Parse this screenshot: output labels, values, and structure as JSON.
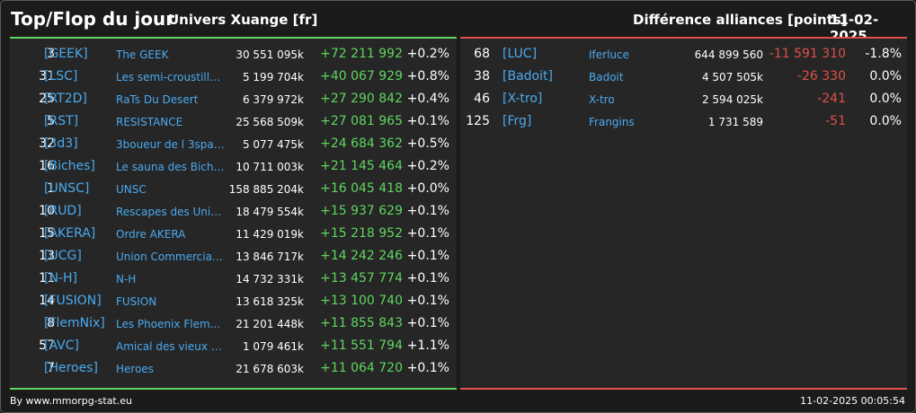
{
  "header": {
    "title": "Top/Flop du jour",
    "subtitle": "Univers Xuange [fr]",
    "right_title": "Différence alliances [points]",
    "date": "11-02-2025"
  },
  "colors": {
    "positive": "#5fd65f",
    "negative": "#e0504a",
    "link": "#4aaaf0",
    "background": "#1b1b1b",
    "panel": "#262626"
  },
  "top": [
    {
      "rank": "3",
      "tag": "[GEEK]",
      "name": "The GEEK",
      "points": "30 551 095k",
      "diff": "+72 211 992",
      "pct": "+0.2%"
    },
    {
      "rank": "31",
      "tag": "[LSC]",
      "name": "Les semi-croustilla...",
      "points": "5 199 704k",
      "diff": "+40 067 929",
      "pct": "+0.8%"
    },
    {
      "rank": "25",
      "tag": "[RT2D]",
      "name": "RaTs Du Desert",
      "points": "6 379 972k",
      "diff": "+27 290 842",
      "pct": "+0.4%"
    },
    {
      "rank": "5",
      "tag": "[RST]",
      "name": "RESISTANCE",
      "points": "25 568 509k",
      "diff": "+27 081 965",
      "pct": "+0.1%"
    },
    {
      "rank": "32",
      "tag": "[3d3]",
      "name": "3boueur de l 3space",
      "points": "5 077 475k",
      "diff": "+24 684 362",
      "pct": "+0.5%"
    },
    {
      "rank": "16",
      "tag": "[Biches]",
      "name": "Le sauna des Biche...",
      "points": "10 711 003k",
      "diff": "+21 145 464",
      "pct": "+0.2%"
    },
    {
      "rank": "1",
      "tag": "[UNSC]",
      "name": "UNSC",
      "points": "158 885 204k",
      "diff": "+16 045 418",
      "pct": "+0.0%"
    },
    {
      "rank": "10",
      "tag": "[RUD]",
      "name": "Rescapes des Univ...",
      "points": "18 479 554k",
      "diff": "+15 937 629",
      "pct": "+0.1%"
    },
    {
      "rank": "15",
      "tag": "[AKERA]",
      "name": "Ordre AKERA",
      "points": "11 429 019k",
      "diff": "+15 218 952",
      "pct": "+0.1%"
    },
    {
      "rank": "13",
      "tag": "[UCG]",
      "name": "Union Commerciale...",
      "points": "13 846 717k",
      "diff": "+14 242 246",
      "pct": "+0.1%"
    },
    {
      "rank": "11",
      "tag": "[N-H]",
      "name": "N-H",
      "points": "14 732 331k",
      "diff": "+13 457 774",
      "pct": "+0.1%"
    },
    {
      "rank": "14",
      "tag": "[FUSION]",
      "name": "FUSION",
      "points": "13 618 325k",
      "diff": "+13 100 740",
      "pct": "+0.1%"
    },
    {
      "rank": "8",
      "tag": "[FlemNix]",
      "name": "Les Phoenix Flem...",
      "points": "21 201 448k",
      "diff": "+11 855 843",
      "pct": "+0.1%"
    },
    {
      "rank": "57",
      "tag": "[AVC]",
      "name": "Amical des vieux co...",
      "points": "1 079 461k",
      "diff": "+11 551 794",
      "pct": "+1.1%"
    },
    {
      "rank": "7",
      "tag": "[Heroes]",
      "name": "Heroes",
      "points": "21 678 603k",
      "diff": "+11 064 720",
      "pct": "+0.1%"
    }
  ],
  "flop": [
    {
      "rank": "68",
      "tag": "[LUC]",
      "name": "Iferluce",
      "points": "644 899 560",
      "diff": "-11 591 310",
      "pct": "-1.8%"
    },
    {
      "rank": "38",
      "tag": "[Badoit]",
      "name": "Badoit",
      "points": "4 507 505k",
      "diff": "-26 330",
      "pct": "0.0%"
    },
    {
      "rank": "46",
      "tag": "[X-tro]",
      "name": "X-tro",
      "points": "2 594 025k",
      "diff": "-241",
      "pct": "0.0%"
    },
    {
      "rank": "125",
      "tag": "[Frg]",
      "name": "Frangins",
      "points": "1 731 589",
      "diff": "-51",
      "pct": "0.0%"
    }
  ],
  "footer": {
    "source": "By www.mmorpg-stat.eu",
    "timestamp": "11-02-2025 00:05:54"
  }
}
